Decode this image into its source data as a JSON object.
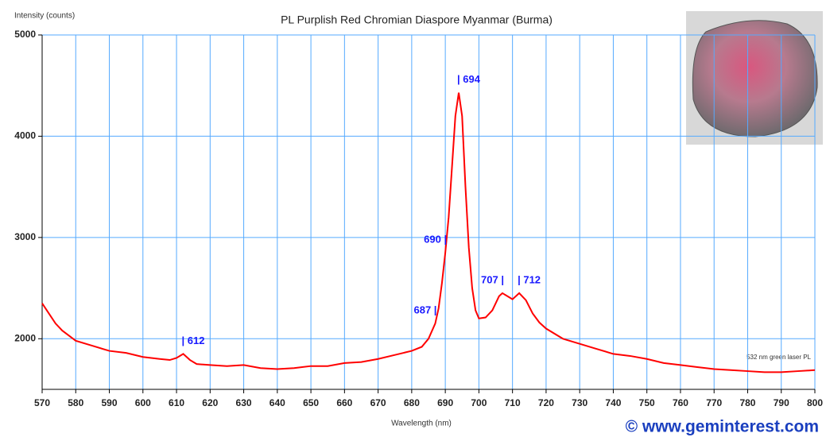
{
  "chart_data": {
    "type": "line",
    "title": "PL  Purplish Red Chromian Diaspore Myanmar (Burma)",
    "y_label": "Intensity (counts)",
    "x_label": "Wavelength (nm)",
    "note": "532 nm green laser PL",
    "credit": "© www.geminterest.com",
    "x": [
      570,
      572,
      574,
      576,
      578,
      580,
      585,
      590,
      595,
      600,
      605,
      608,
      610,
      612,
      614,
      616,
      620,
      625,
      630,
      635,
      640,
      645,
      650,
      655,
      660,
      665,
      670,
      675,
      680,
      683,
      685,
      687,
      688,
      689,
      690,
      691,
      692,
      693,
      694,
      695,
      696,
      697,
      698,
      699,
      700,
      702,
      704,
      706,
      707,
      708,
      710,
      712,
      714,
      716,
      718,
      720,
      725,
      730,
      735,
      740,
      745,
      750,
      755,
      760,
      765,
      770,
      775,
      780,
      785,
      790,
      795,
      800
    ],
    "series": [
      {
        "color": "#ff0000",
        "values": [
          2350,
          2250,
          2150,
          2080,
          2030,
          1980,
          1930,
          1880,
          1860,
          1820,
          1800,
          1790,
          1810,
          1850,
          1790,
          1750,
          1740,
          1730,
          1740,
          1710,
          1700,
          1710,
          1730,
          1730,
          1760,
          1770,
          1800,
          1840,
          1880,
          1920,
          2000,
          2150,
          2300,
          2550,
          2850,
          3200,
          3700,
          4200,
          4430,
          4200,
          3500,
          2900,
          2500,
          2280,
          2200,
          2210,
          2280,
          2420,
          2450,
          2430,
          2390,
          2450,
          2380,
          2250,
          2160,
          2100,
          2000,
          1950,
          1900,
          1850,
          1830,
          1800,
          1760,
          1740,
          1720,
          1700,
          1690,
          1680,
          1670,
          1670,
          1680,
          1690
        ]
      }
    ],
    "annotations": [
      {
        "label": "| 612",
        "x": 612
      },
      {
        "label": "687 |",
        "x": 687
      },
      {
        "label": "690 |",
        "x": 690
      },
      {
        "label": "| 694",
        "x": 694
      },
      {
        "label": "707 |",
        "x": 707
      },
      {
        "label": "| 712",
        "x": 712
      }
    ],
    "xlim": [
      570,
      800
    ],
    "xticks": [
      570,
      580,
      590,
      600,
      610,
      620,
      630,
      640,
      650,
      660,
      670,
      680,
      690,
      700,
      710,
      720,
      730,
      740,
      750,
      760,
      770,
      780,
      790,
      800
    ],
    "ylim": [
      1500,
      5000
    ],
    "yticks": [
      2000,
      3000,
      4000,
      5000
    ],
    "grid": true,
    "grid_color": "#55aaff",
    "annotation_color": "#1a1aff"
  }
}
